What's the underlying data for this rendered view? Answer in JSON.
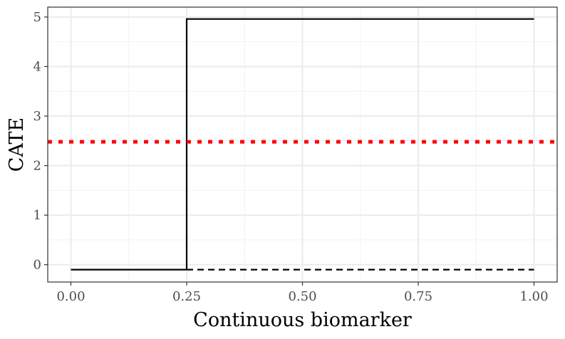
{
  "chart_data": {
    "type": "line",
    "title": "",
    "xlabel": "Continuous biomarker",
    "ylabel": "CATE",
    "xlim": [
      -0.05,
      1.05
    ],
    "ylim": [
      -0.35,
      5.2
    ],
    "x_ticks": [
      {
        "value": 0.0,
        "label": "0.00"
      },
      {
        "value": 0.25,
        "label": "0.25"
      },
      {
        "value": 0.5,
        "label": "0.50"
      },
      {
        "value": 0.75,
        "label": "0.75"
      },
      {
        "value": 1.0,
        "label": "1.00"
      }
    ],
    "y_ticks": [
      {
        "value": 0,
        "label": "0"
      },
      {
        "value": 1,
        "label": "1"
      },
      {
        "value": 2,
        "label": "2"
      },
      {
        "value": 3,
        "label": "3"
      },
      {
        "value": 4,
        "label": "4"
      },
      {
        "value": 5,
        "label": "5"
      }
    ],
    "grid": true,
    "legend": "none",
    "series": [
      {
        "style": "solid",
        "color": "#000000",
        "x": [
          0.0,
          0.25,
          0.25,
          1.0
        ],
        "y": [
          -0.1,
          -0.1,
          4.96,
          4.96
        ]
      },
      {
        "style": "dashed",
        "color": "#000000",
        "x": [
          0.25,
          1.0
        ],
        "y": [
          -0.1,
          -0.1
        ]
      },
      {
        "style": "dotted",
        "color": "#ff0000",
        "x": [
          -0.05,
          1.05
        ],
        "y": [
          2.48,
          2.48
        ]
      }
    ]
  }
}
